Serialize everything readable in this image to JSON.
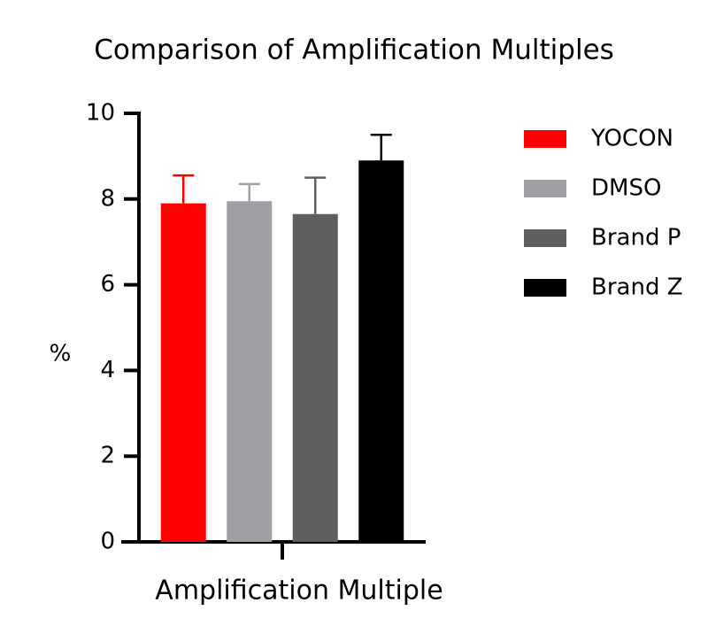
{
  "chart_data": {
    "type": "bar",
    "title": "Comparison of Amplification Multiples",
    "x_label": "Amplification Multiple",
    "y_label": "%",
    "categories": [
      null
    ],
    "series": [
      {
        "name": "YOCON",
        "color": "#ff0000",
        "values": [
          7.9
        ],
        "errors": [
          0.65
        ]
      },
      {
        "name": "DMSO",
        "color": "#a0a0a4",
        "values": [
          7.95
        ],
        "errors": [
          0.4
        ]
      },
      {
        "name": "Brand P",
        "color": "#5f5f5f",
        "values": [
          7.65
        ],
        "errors": [
          0.85
        ]
      },
      {
        "name": "Brand Z",
        "color": "#000000",
        "values": [
          8.9
        ],
        "errors": [
          0.6
        ]
      }
    ],
    "ylim": [
      0,
      10
    ],
    "yticks": [
      0,
      2,
      4,
      6,
      8,
      10
    ],
    "grid": false,
    "legend": "right"
  }
}
